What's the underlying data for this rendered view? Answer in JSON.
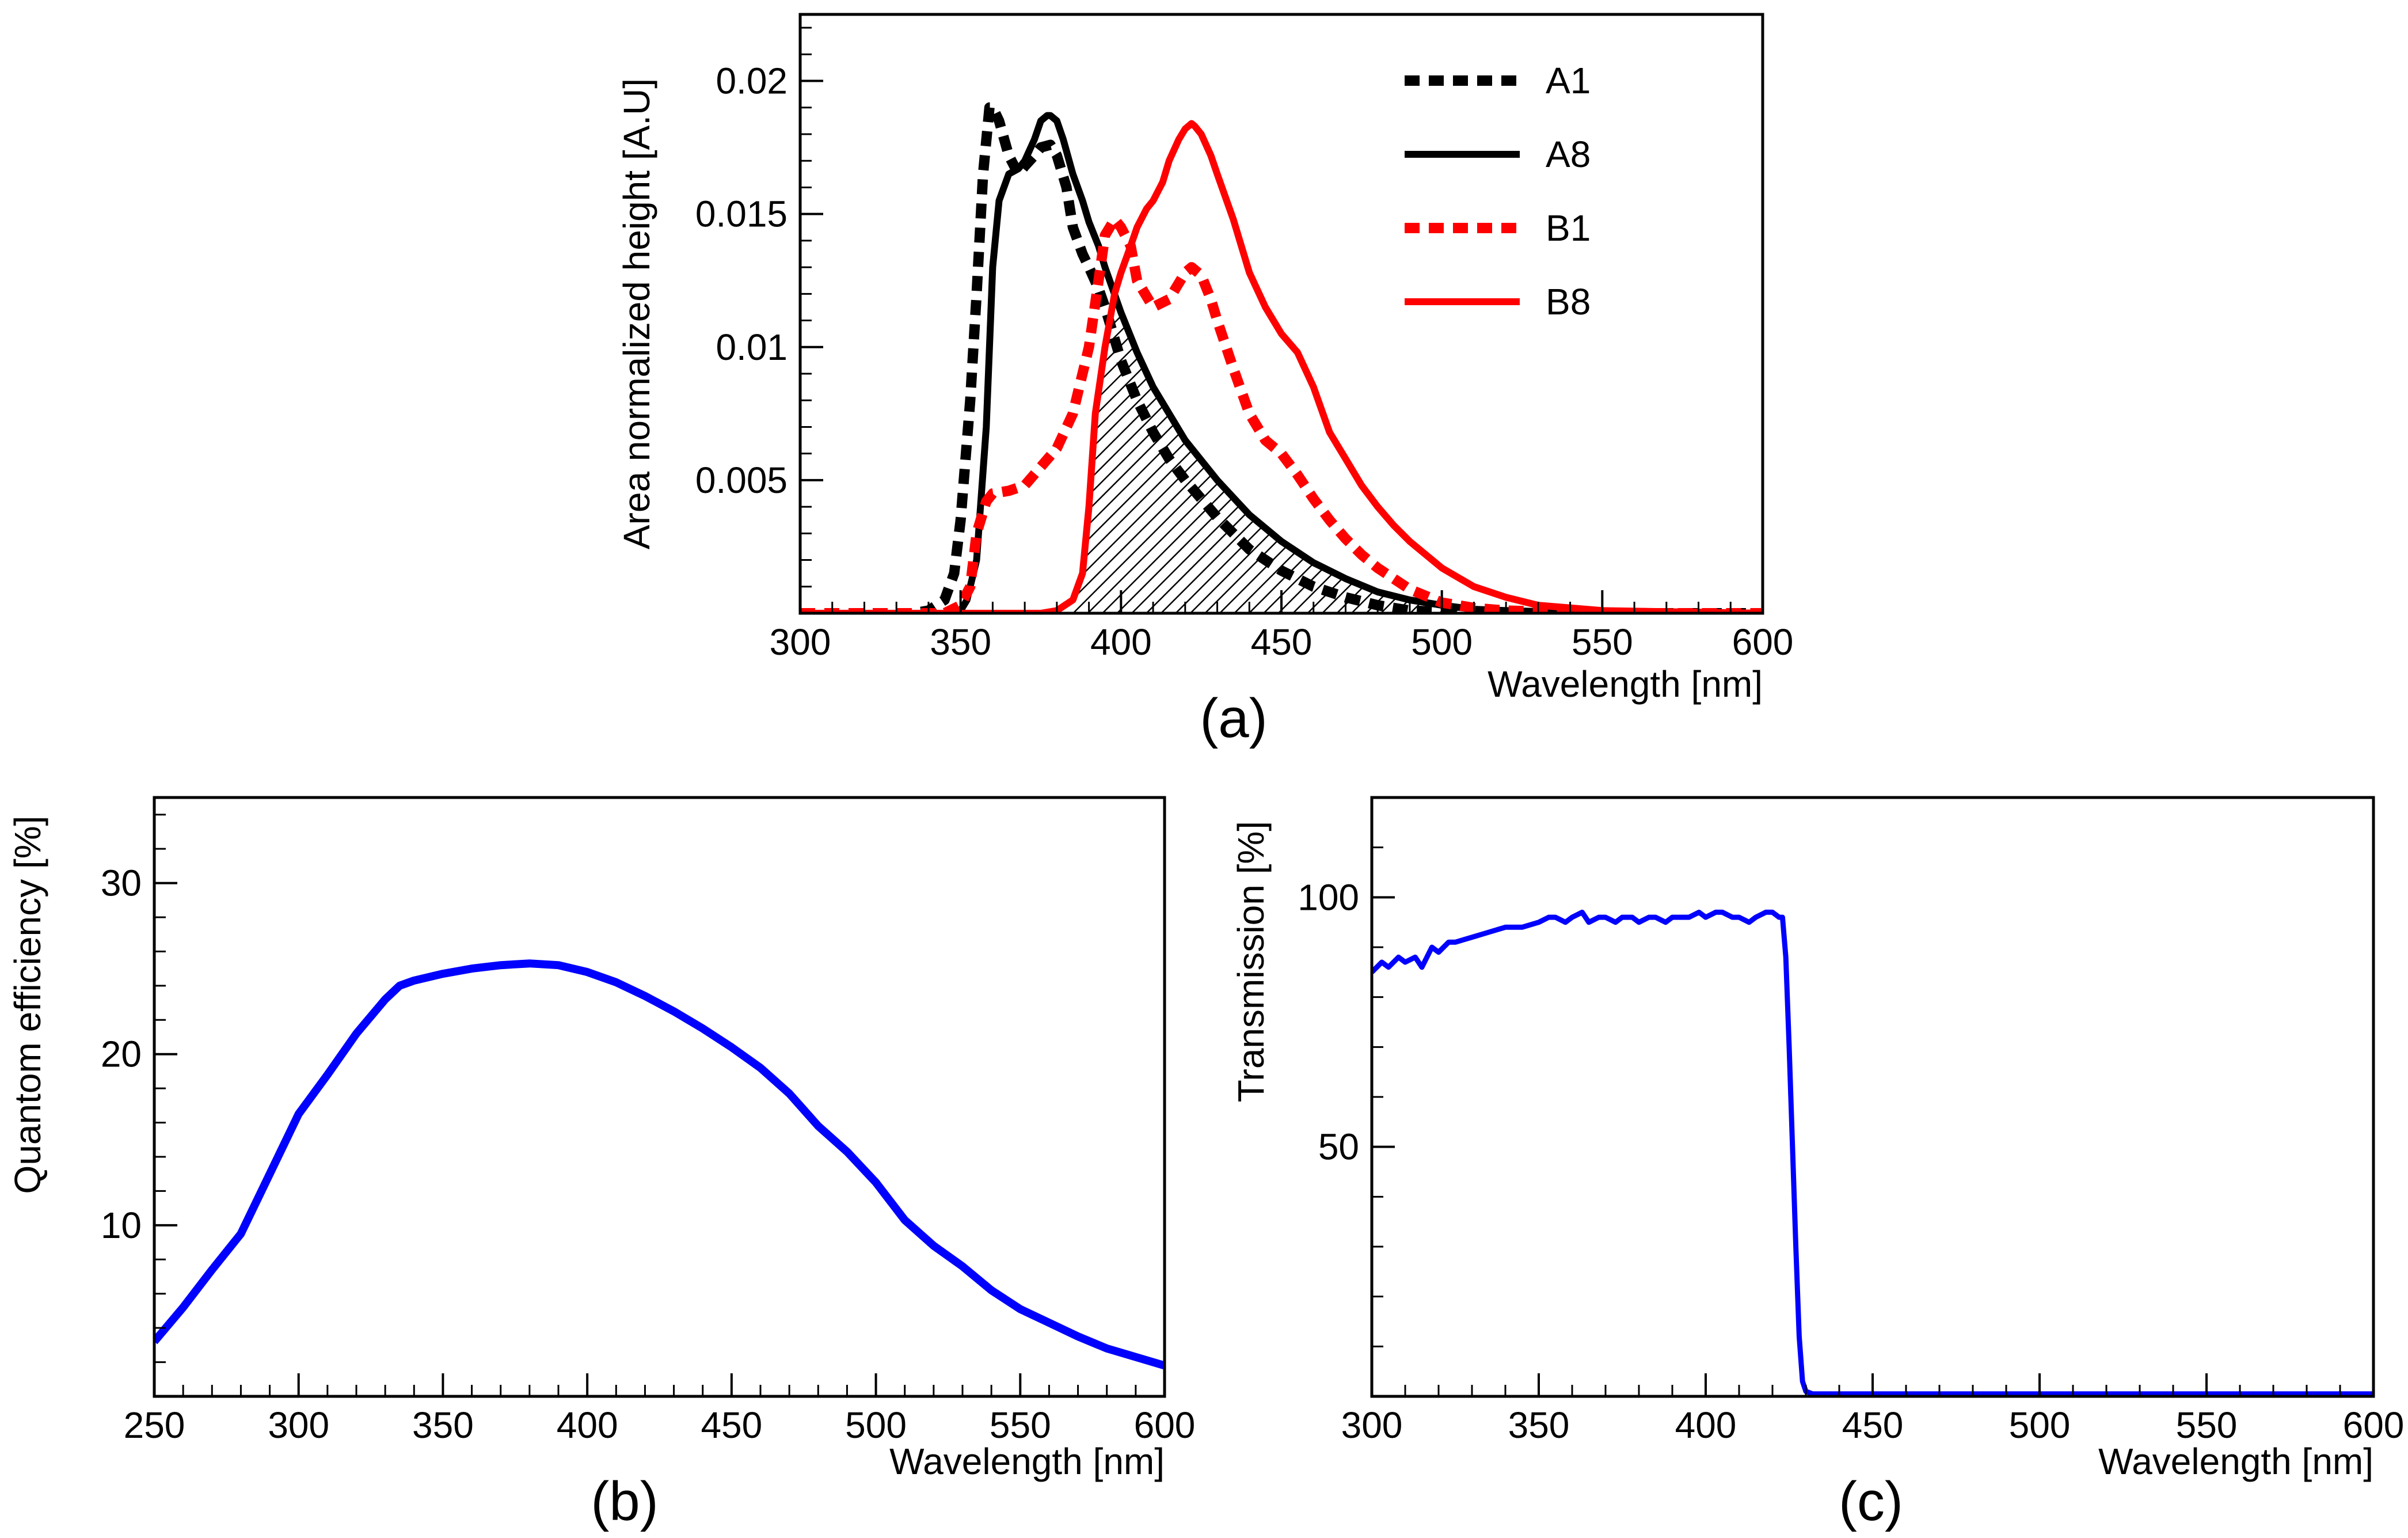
{
  "chart_data": [
    {
      "panel_label": "(a)",
      "type": "line",
      "title": "",
      "xlabel": "Wavelength [nm]",
      "ylabel": "Area normalized height [A.U]",
      "xlim": [
        300,
        600
      ],
      "ylim": [
        0,
        0.0225
      ],
      "xticks": [
        300,
        350,
        400,
        450,
        500,
        550,
        600
      ],
      "yticks": [
        0.005,
        0.01,
        0.015,
        0.02
      ],
      "ytick_labels": [
        "0.005",
        "0.01",
        "0.015",
        "0.02"
      ],
      "legend_position": "top-right",
      "shaded_region": "hatched area between B8 rising edge and A8/A1 tail, 385-510 nm",
      "series": [
        {
          "name": "A1",
          "color": "#000000",
          "dashed": true,
          "x": [
            300,
            335,
            340,
            345,
            348,
            350,
            353,
            355,
            357,
            359,
            360,
            362,
            365,
            368,
            370,
            373,
            375,
            378,
            380,
            383,
            385,
            388,
            390,
            393,
            395,
            400,
            405,
            410,
            415,
            420,
            425,
            430,
            435,
            440,
            450,
            460,
            470,
            480,
            490,
            500,
            510,
            520,
            550,
            600
          ],
          "y": [
            0,
            0,
            0.0001,
            0.0005,
            0.0015,
            0.0035,
            0.008,
            0.012,
            0.0165,
            0.019,
            0.019,
            0.0185,
            0.0172,
            0.0165,
            0.0168,
            0.0172,
            0.0175,
            0.0176,
            0.0172,
            0.016,
            0.0145,
            0.0135,
            0.013,
            0.0122,
            0.0115,
            0.0095,
            0.008,
            0.0068,
            0.0058,
            0.005,
            0.0043,
            0.0036,
            0.003,
            0.0024,
            0.0016,
            0.001,
            0.0006,
            0.0003,
            0.0001,
            5e-05,
            0,
            0,
            0,
            0
          ]
        },
        {
          "name": "A8",
          "color": "#000000",
          "dashed": false,
          "x": [
            300,
            345,
            350,
            352,
            355,
            358,
            360,
            362,
            365,
            368,
            370,
            373,
            375,
            377,
            378,
            380,
            382,
            385,
            388,
            390,
            393,
            395,
            400,
            405,
            410,
            420,
            430,
            440,
            450,
            460,
            470,
            480,
            490,
            500,
            510,
            520,
            550,
            600
          ],
          "y": [
            0,
            0,
            0.0001,
            0.0005,
            0.002,
            0.007,
            0.013,
            0.0155,
            0.0165,
            0.0167,
            0.017,
            0.0178,
            0.0185,
            0.0187,
            0.0187,
            0.0185,
            0.0178,
            0.0165,
            0.0155,
            0.0147,
            0.0138,
            0.013,
            0.0113,
            0.0098,
            0.0085,
            0.0065,
            0.005,
            0.0037,
            0.0027,
            0.0019,
            0.0013,
            0.0008,
            0.0005,
            0.0003,
            0.00015,
            0.0001,
            0,
            0
          ]
        },
        {
          "name": "B1",
          "color": "#ff0000",
          "dashed": true,
          "x": [
            300,
            345,
            350,
            353,
            355,
            358,
            360,
            365,
            370,
            375,
            380,
            385,
            390,
            393,
            395,
            398,
            400,
            403,
            405,
            410,
            415,
            420,
            422,
            425,
            428,
            430,
            435,
            440,
            445,
            450,
            455,
            460,
            465,
            470,
            475,
            480,
            490,
            500,
            510,
            520,
            550,
            600
          ],
          "y": [
            0,
            0,
            0.0003,
            0.001,
            0.003,
            0.0042,
            0.0045,
            0.0046,
            0.0048,
            0.0055,
            0.0062,
            0.0075,
            0.01,
            0.0125,
            0.0142,
            0.0148,
            0.0145,
            0.0138,
            0.0125,
            0.0115,
            0.0118,
            0.0128,
            0.013,
            0.0127,
            0.0118,
            0.011,
            0.0092,
            0.0075,
            0.0065,
            0.006,
            0.0052,
            0.0043,
            0.0035,
            0.0028,
            0.0022,
            0.0017,
            0.0009,
            0.0004,
            0.0002,
            0.0001,
            0,
            0
          ]
        },
        {
          "name": "B8",
          "color": "#ff0000",
          "dashed": false,
          "x": [
            300,
            375,
            380,
            385,
            388,
            390,
            392,
            395,
            398,
            400,
            403,
            405,
            408,
            410,
            413,
            415,
            418,
            420,
            422,
            423,
            425,
            428,
            430,
            435,
            440,
            445,
            450,
            455,
            460,
            465,
            470,
            475,
            480,
            485,
            490,
            500,
            510,
            520,
            530,
            550,
            600
          ],
          "y": [
            0,
            0,
            0.0001,
            0.0005,
            0.0015,
            0.004,
            0.0075,
            0.01,
            0.012,
            0.0128,
            0.0138,
            0.0145,
            0.0152,
            0.0155,
            0.0162,
            0.017,
            0.0178,
            0.0182,
            0.0184,
            0.0183,
            0.018,
            0.0172,
            0.0165,
            0.0148,
            0.0128,
            0.0115,
            0.0105,
            0.0098,
            0.0085,
            0.0068,
            0.0058,
            0.0048,
            0.004,
            0.0033,
            0.0027,
            0.0017,
            0.001,
            0.0006,
            0.0003,
            0.0001,
            0
          ]
        }
      ]
    },
    {
      "panel_label": "(b)",
      "type": "line",
      "title": "",
      "xlabel": "Wavelength [nm]",
      "ylabel": "Quantom efficiency [%]",
      "xlim": [
        250,
        600
      ],
      "ylim": [
        0,
        35
      ],
      "xticks": [
        250,
        300,
        350,
        400,
        450,
        500,
        550,
        600
      ],
      "yticks": [
        10,
        20,
        30
      ],
      "ytick_labels": [
        "10",
        "20",
        "30"
      ],
      "series": [
        {
          "name": "Quantum efficiency",
          "color": "#0000ff",
          "dashed": false,
          "x": [
            250,
            260,
            270,
            280,
            290,
            300,
            310,
            320,
            330,
            335,
            340,
            350,
            360,
            370,
            380,
            390,
            400,
            410,
            420,
            430,
            440,
            450,
            460,
            470,
            480,
            490,
            500,
            510,
            520,
            530,
            540,
            550,
            560,
            570,
            580,
            590,
            600
          ],
          "y": [
            3.2,
            5.2,
            7.4,
            9.5,
            13,
            16.5,
            18.8,
            21.2,
            23.2,
            24,
            24.3,
            24.7,
            25,
            25.2,
            25.3,
            25.2,
            24.8,
            24.2,
            23.4,
            22.5,
            21.5,
            20.4,
            19.2,
            17.7,
            15.8,
            14.3,
            12.5,
            10.3,
            8.8,
            7.6,
            6.2,
            5.1,
            4.3,
            3.5,
            2.8,
            2.3,
            1.8
          ]
        }
      ]
    },
    {
      "panel_label": "(c)",
      "type": "line",
      "title": "",
      "xlabel": "Wavelength [nm]",
      "ylabel": "Transmission [%]",
      "xlim": [
        300,
        600
      ],
      "ylim": [
        0,
        120
      ],
      "xticks": [
        300,
        350,
        400,
        450,
        500,
        550,
        600
      ],
      "yticks": [
        50,
        100
      ],
      "ytick_labels": [
        "50",
        "100"
      ],
      "series": [
        {
          "name": "Transmission",
          "color": "#0000ff",
          "dashed": false,
          "x": [
            300,
            303,
            305,
            308,
            310,
            313,
            315,
            318,
            320,
            323,
            325,
            330,
            335,
            340,
            345,
            350,
            353,
            355,
            358,
            360,
            363,
            365,
            368,
            370,
            373,
            375,
            378,
            380,
            383,
            385,
            388,
            390,
            393,
            395,
            398,
            400,
            403,
            405,
            408,
            410,
            413,
            415,
            418,
            420,
            422,
            423,
            424,
            425,
            426,
            427,
            428,
            429,
            430,
            432,
            435,
            440,
            450,
            500,
            550,
            600
          ],
          "y": [
            85,
            87,
            86,
            88,
            87,
            88,
            86,
            90,
            89,
            91,
            91,
            92,
            93,
            94,
            94,
            95,
            96,
            96,
            95,
            96,
            97,
            95,
            96,
            96,
            95,
            96,
            96,
            95,
            96,
            96,
            95,
            96,
            96,
            96,
            97,
            96,
            97,
            97,
            96,
            96,
            95,
            96,
            97,
            97,
            96,
            96,
            88,
            70,
            50,
            30,
            12,
            3,
            1,
            0.5,
            0.5,
            0.5,
            0.5,
            0.5,
            0.5,
            0.5
          ]
        }
      ]
    }
  ]
}
